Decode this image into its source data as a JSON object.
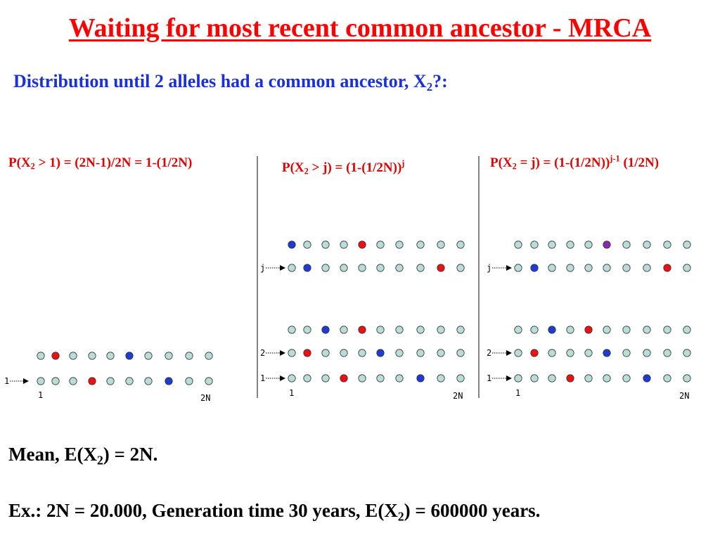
{
  "title": "Waiting for most recent common ancestor - MRCA",
  "subtitle": {
    "before": "Distribution until 2 alleles had a common ancestor, X",
    "sub": "2",
    "after": "?:"
  },
  "formulas": {
    "left": {
      "a": "P(X",
      "sub": "2",
      "b": " > 1) = (2N-1)/2N = 1-(1/2N)"
    },
    "middle": {
      "a": "P(X",
      "sub": "2",
      "b": " > j)  = (1-(1/2N))",
      "sup": "j"
    },
    "right": {
      "a": "P(X",
      "sub": "2",
      "b": " = j)  = (1-(1/2N))",
      "sup": "j-1",
      "c": " (1/2N)"
    }
  },
  "labels": {
    "one": "1",
    "two": "2",
    "j": "j",
    "two_n": "2N"
  },
  "colors": {
    "title": "#ff0000",
    "subtitle": "#1a31d8",
    "formula": "#e00000",
    "allele_neutral": "#b8ddd8",
    "allele_red": "#ee1111",
    "allele_blue": "#1f3bd6",
    "allele_purple": "#8a2ab0"
  },
  "panels": [
    {
      "name": "panel-left",
      "rows": [
        {
          "label": "",
          "colors": [
            "n",
            "r",
            "n",
            "n",
            "n",
            "b",
            "n",
            "n",
            "n",
            "n"
          ]
        },
        {
          "label": "1",
          "colors": [
            "n",
            "n",
            "n",
            "r",
            "n",
            "n",
            "n",
            "b",
            "n",
            "n"
          ]
        }
      ]
    },
    {
      "name": "panel-middle",
      "rows": [
        {
          "label": "",
          "colors": [
            "b",
            "n",
            "n",
            "n",
            "r",
            "n",
            "n",
            "n",
            "n",
            "n"
          ]
        },
        {
          "label": "j",
          "colors": [
            "n",
            "b",
            "n",
            "n",
            "n",
            "n",
            "n",
            "n",
            "r",
            "n"
          ]
        },
        {
          "label": "",
          "colors": [
            "n",
            "n",
            "b",
            "n",
            "r",
            "n",
            "n",
            "n",
            "n",
            "n"
          ]
        },
        {
          "label": "2",
          "colors": [
            "n",
            "r",
            "n",
            "n",
            "n",
            "b",
            "n",
            "n",
            "n",
            "n"
          ]
        },
        {
          "label": "1",
          "colors": [
            "n",
            "n",
            "n",
            "r",
            "n",
            "n",
            "n",
            "b",
            "n",
            "n"
          ]
        }
      ]
    },
    {
      "name": "panel-right",
      "rows": [
        {
          "label": "",
          "colors": [
            "n",
            "n",
            "n",
            "n",
            "n",
            "p",
            "n",
            "n",
            "n",
            "n"
          ]
        },
        {
          "label": "j",
          "colors": [
            "n",
            "b",
            "n",
            "n",
            "n",
            "n",
            "n",
            "n",
            "r",
            "n"
          ]
        },
        {
          "label": "",
          "colors": [
            "n",
            "n",
            "b",
            "n",
            "r",
            "n",
            "n",
            "n",
            "n",
            "n"
          ]
        },
        {
          "label": "2",
          "colors": [
            "n",
            "r",
            "n",
            "n",
            "n",
            "b",
            "n",
            "n",
            "n",
            "n"
          ]
        },
        {
          "label": "1",
          "colors": [
            "n",
            "n",
            "n",
            "r",
            "n",
            "n",
            "n",
            "b",
            "n",
            "n"
          ]
        }
      ]
    }
  ],
  "mean": {
    "a": "Mean, E(X",
    "sub": "2",
    "b": ") = 2N."
  },
  "example": {
    "a": "Ex.:  2N = 20.000, Generation time 30 years, E(X",
    "sub": "2",
    "b": ") = 600000 years."
  }
}
